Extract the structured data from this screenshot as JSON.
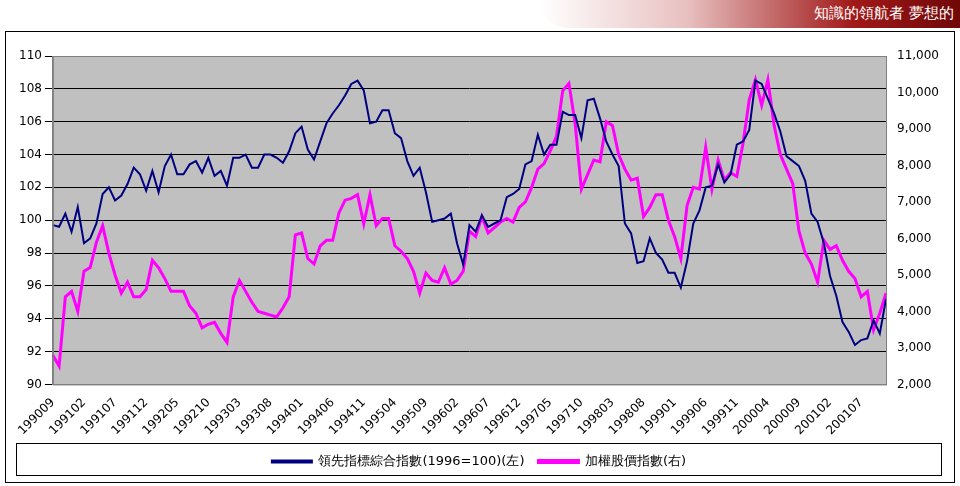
{
  "banner_text": "知識的領航者 夢想的",
  "chart_data": {
    "type": "line",
    "categories": [
      "199009",
      null,
      null,
      null,
      null,
      "199102",
      null,
      null,
      null,
      null,
      "199107",
      null,
      null,
      null,
      null,
      "199112",
      null,
      null,
      null,
      null,
      "199205",
      null,
      null,
      null,
      null,
      "199210",
      null,
      null,
      null,
      null,
      "199303",
      null,
      null,
      null,
      null,
      "199308",
      null,
      null,
      null,
      null,
      "199401",
      null,
      null,
      null,
      null,
      "199406",
      null,
      null,
      null,
      null,
      "199411",
      null,
      null,
      null,
      null,
      "199504",
      null,
      null,
      null,
      null,
      "199509",
      null,
      null,
      null,
      null,
      "199602",
      null,
      null,
      null,
      null,
      "199607",
      null,
      null,
      null,
      null,
      "199612",
      null,
      null,
      null,
      null,
      "199705",
      null,
      null,
      null,
      null,
      "199710",
      null,
      null,
      null,
      null,
      "199803",
      null,
      null,
      null,
      null,
      "199808",
      null,
      null,
      null,
      null,
      "199901",
      null,
      null,
      null,
      null,
      "199906",
      null,
      null,
      null,
      null,
      "199911",
      null,
      null,
      null,
      null,
      "200004",
      null,
      null,
      null,
      null,
      "200009",
      null,
      null,
      null,
      null,
      "200102",
      null,
      null,
      null,
      null,
      "200107",
      null,
      null,
      null,
      null
    ],
    "series": [
      {
        "name": "領先指標綜合指數(1996=100)(左)",
        "color": "#000080",
        "marker": "none",
        "values": [
          99.7,
          99.6,
          100.4,
          99.3,
          100.8,
          98.6,
          98.9,
          99.8,
          101.6,
          102.0,
          101.2,
          101.5,
          102.2,
          103.2,
          102.8,
          101.8,
          103.0,
          101.7,
          103.3,
          104.0,
          102.8,
          102.8,
          103.4,
          103.6,
          102.9,
          103.8,
          102.7,
          103.0,
          102.1,
          103.8,
          103.8,
          104.0,
          103.2,
          103.2,
          104.0,
          104.0,
          103.8,
          103.5,
          104.2,
          105.3,
          105.7,
          104.3,
          103.7,
          104.8,
          105.9,
          106.5,
          107.0,
          107.6,
          108.3,
          108.5,
          107.9,
          105.9,
          106.0,
          106.7,
          106.7,
          105.3,
          105.0,
          103.6,
          102.7,
          103.2,
          101.7,
          99.9,
          100.0,
          100.1,
          100.4,
          98.6,
          97.3,
          99.7,
          99.3,
          100.3,
          99.6,
          99.8,
          100.0,
          101.4,
          101.6,
          101.9,
          103.4,
          103.6,
          105.2,
          104.0,
          104.6,
          104.6,
          106.6,
          106.4,
          106.4,
          105.0,
          107.3,
          107.4,
          106.2,
          104.8,
          104.0,
          103.3,
          99.8,
          99.2,
          97.4,
          97.5,
          98.9,
          98.0,
          97.6,
          96.8,
          96.8,
          95.9,
          97.5,
          99.8,
          100.6,
          102.0,
          102.1,
          103.4,
          102.3,
          102.8,
          104.6,
          104.8,
          105.5,
          108.5,
          108.3,
          107.4,
          106.5,
          105.4,
          103.9,
          103.6,
          103.3,
          102.4,
          100.4,
          99.9,
          98.6,
          96.6,
          95.4,
          93.8,
          93.2,
          92.4,
          92.7,
          92.8,
          93.9,
          93.1,
          95.2
        ]
      },
      {
        "name": "加權股價指數(右)",
        "color": "#FF00FF",
        "marker": "none",
        "axis": "y2",
        "values": [
          2800,
          2500,
          4400,
          4550,
          4000,
          5100,
          5200,
          5900,
          6350,
          5600,
          5000,
          4500,
          4800,
          4400,
          4400,
          4600,
          5400,
          5200,
          4900,
          4550,
          4550,
          4550,
          4150,
          3950,
          3550,
          3650,
          3700,
          3400,
          3150,
          4400,
          4850,
          4550,
          4250,
          4000,
          3950,
          3900,
          3850,
          4100,
          4400,
          6100,
          6150,
          5450,
          5300,
          5800,
          5950,
          5950,
          6700,
          7050,
          7100,
          7200,
          6400,
          7200,
          6350,
          6550,
          6550,
          5800,
          5650,
          5450,
          5100,
          4500,
          5050,
          4850,
          4800,
          5200,
          4750,
          4850,
          5100,
          6200,
          6050,
          6600,
          6150,
          6300,
          6450,
          6550,
          6450,
          6850,
          7000,
          7400,
          7900,
          8050,
          8400,
          8800,
          10050,
          10250,
          9150,
          7350,
          7750,
          8150,
          8100,
          9200,
          9100,
          8300,
          7900,
          7600,
          7650,
          6600,
          6850,
          7200,
          7200,
          6500,
          6050,
          5450,
          6900,
          7400,
          7350,
          8500,
          7350,
          8150,
          7600,
          7800,
          7700,
          8600,
          9800,
          10350,
          9650,
          10350,
          9100,
          8300,
          7900,
          7500,
          6200,
          5600,
          5300,
          4800,
          5950,
          5700,
          5800,
          5400,
          5100,
          4900,
          4400,
          4550,
          3500,
          3950,
          4500
        ]
      }
    ],
    "ylim": [
      90,
      110
    ],
    "yticks": [
      90,
      92,
      94,
      96,
      98,
      100,
      102,
      104,
      106,
      108,
      110
    ],
    "y2lim": [
      2000,
      11000
    ],
    "y2ticks": [
      {
        "value": 2000,
        "label": "2,000"
      },
      {
        "value": 3000,
        "label": "3,000"
      },
      {
        "value": 4000,
        "label": "4,000"
      },
      {
        "value": 5000,
        "label": "5,000"
      },
      {
        "value": 6000,
        "label": "6,000"
      },
      {
        "value": 7000,
        "label": "7,000"
      },
      {
        "value": 8000,
        "label": "8,000"
      },
      {
        "value": 9000,
        "label": "9,000"
      },
      {
        "value": 10000,
        "label": "10,000"
      },
      {
        "value": 11000,
        "label": "11,000"
      }
    ],
    "grid": true,
    "legend": "bottom"
  }
}
